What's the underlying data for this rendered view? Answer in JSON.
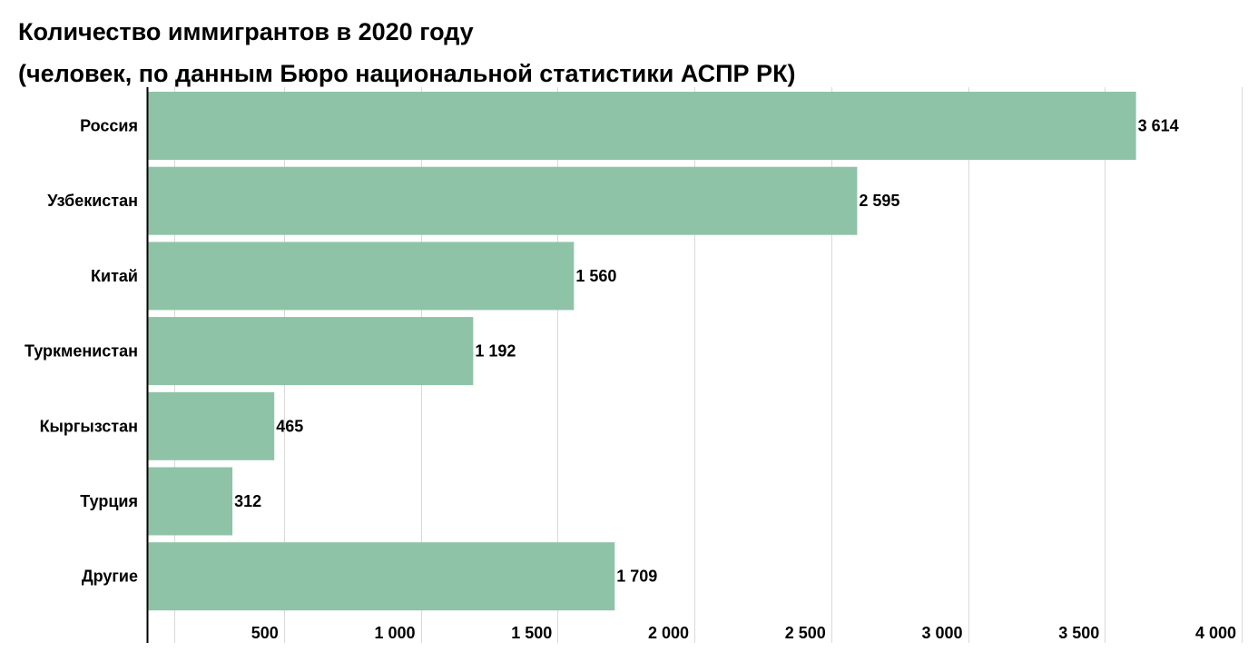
{
  "chart_data": {
    "type": "bar",
    "orientation": "horizontal",
    "title": "Количество иммигрантов в 2020 году",
    "subtitle": "(человек, по данным Бюро национальной статистики АСПР РК)",
    "categories": [
      "Россия",
      "Узбекистан",
      "Китай",
      "Туркменистан",
      "Кыргызстан",
      "Турция",
      "Другие"
    ],
    "values": [
      3614,
      2595,
      1560,
      1192,
      465,
      312,
      1709
    ],
    "value_labels": [
      "3 614",
      "2 595",
      "1 560",
      "1 192",
      "465",
      "312",
      "1 709"
    ],
    "xlim": [
      0,
      4000
    ],
    "x_ticks": [
      500,
      1000,
      1500,
      2000,
      2500,
      3000,
      3500,
      4000
    ],
    "x_tick_labels": [
      "500",
      "1 000",
      "1 500",
      "2 000",
      "2 500",
      "3 000",
      "3 500",
      "4 000"
    ],
    "grid": true,
    "colors": {
      "bar": "#8fc3a7",
      "grid": "#d9d9d9",
      "axis": "#000000"
    }
  }
}
